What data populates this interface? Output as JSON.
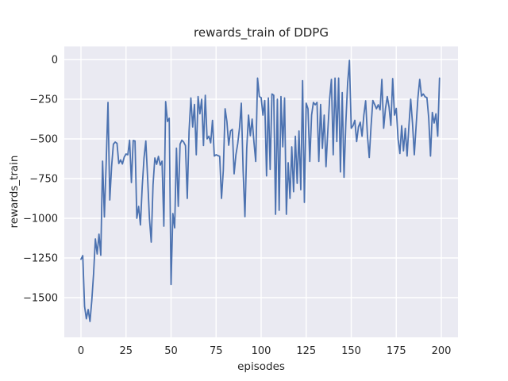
{
  "figure": {
    "background_color": "#ffffff",
    "plot_background_color": "#eaeaf2",
    "grid_color": "#ffffff",
    "text_color": "#262626"
  },
  "chart_data": {
    "type": "line",
    "title": "rewards_train of DDPG",
    "xlabel": "episodes",
    "ylabel": "rewards_train",
    "legend_position": "none",
    "grid": true,
    "style": "seaborn-darkgrid",
    "x_ticks": [
      0,
      25,
      50,
      75,
      100,
      125,
      150,
      175,
      200
    ],
    "y_ticks": [
      0,
      -250,
      -500,
      -750,
      -1000,
      -1250,
      -1500
    ],
    "y_tick_labels": [
      "0",
      "−250",
      "−500",
      "−750",
      "−1000",
      "−1250",
      "−1500"
    ],
    "xlim": [
      -9.25,
      209.25
    ],
    "ylim": [
      -1750,
      82.5
    ],
    "x_start": 0,
    "x_step": 1,
    "series": [
      {
        "name": "rewards_train",
        "color": "#4c72b0",
        "line_width": 1.8,
        "values": [
          -1258,
          -1235,
          -1555,
          -1633,
          -1575,
          -1650,
          -1520,
          -1350,
          -1130,
          -1225,
          -1100,
          -1233,
          -640,
          -992,
          -650,
          -270,
          -885,
          -675,
          -533,
          -520,
          -528,
          -655,
          -632,
          -658,
          -615,
          -595,
          -600,
          -508,
          -775,
          -510,
          -513,
          -1000,
          -925,
          -1042,
          -800,
          -620,
          -513,
          -748,
          -1000,
          -1150,
          -790,
          -620,
          -660,
          -610,
          -665,
          -640,
          -1050,
          -265,
          -390,
          -370,
          -1417,
          -970,
          -1060,
          -558,
          -925,
          -533,
          -508,
          -520,
          -542,
          -875,
          -450,
          -242,
          -425,
          -283,
          -600,
          -233,
          -342,
          -250,
          -542,
          -225,
          -500,
          -483,
          -525,
          -383,
          -608,
          -600,
          -605,
          -610,
          -875,
          -700,
          -310,
          -390,
          -540,
          -450,
          -440,
          -720,
          -600,
          -530,
          -430,
          -275,
          -700,
          -990,
          -560,
          -350,
          -480,
          -375,
          -520,
          -642,
          -117,
          -233,
          -240,
          -350,
          -258,
          -733,
          -242,
          -692,
          -217,
          -225,
          -975,
          -250,
          -950,
          -233,
          -550,
          -242,
          -975,
          -650,
          -875,
          -550,
          -833,
          -483,
          -780,
          -450,
          -820,
          -133,
          -900,
          -275,
          -310,
          -642,
          -350,
          -270,
          -285,
          -270,
          -642,
          -283,
          -560,
          -350,
          -675,
          -450,
          -250,
          -125,
          -600,
          -117,
          -517,
          -117,
          -708,
          -208,
          -742,
          -400,
          -150,
          -5,
          -433,
          -417,
          -383,
          -517,
          -425,
          -395,
          -483,
          -350,
          -260,
          -480,
          -617,
          -420,
          -258,
          -283,
          -310,
          -285,
          -317,
          -125,
          -433,
          -310,
          -233,
          -300,
          -415,
          -120,
          -350,
          -308,
          -500,
          -592,
          -417,
          -575,
          -433,
          -608,
          -420,
          -250,
          -400,
          -600,
          -420,
          -242,
          -125,
          -230,
          -217,
          -235,
          -240,
          -367,
          -608,
          -333,
          -400,
          -342,
          -483,
          -117
        ]
      }
    ]
  }
}
